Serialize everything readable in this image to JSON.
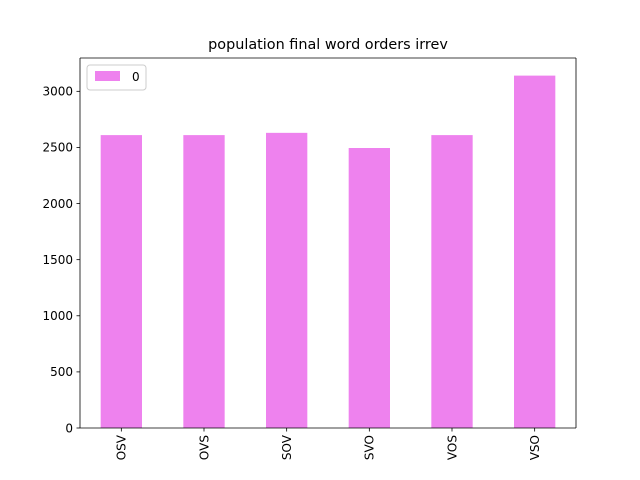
{
  "chart_data": {
    "type": "bar",
    "title": "population final word orders irrev",
    "xlabel": "",
    "ylabel": "",
    "categories": [
      "OSV",
      "OVS",
      "SOV",
      "SVO",
      "VOS",
      "VSO"
    ],
    "series": [
      {
        "name": "0",
        "values": [
          2610,
          2610,
          2630,
          2495,
          2610,
          3140
        ],
        "color": "#ee82ee"
      }
    ],
    "ylim": [
      0,
      3297
    ],
    "yticks": [
      0,
      500,
      1000,
      1500,
      2000,
      2500,
      3000
    ],
    "legend_position": "upper-left",
    "grid": false
  }
}
